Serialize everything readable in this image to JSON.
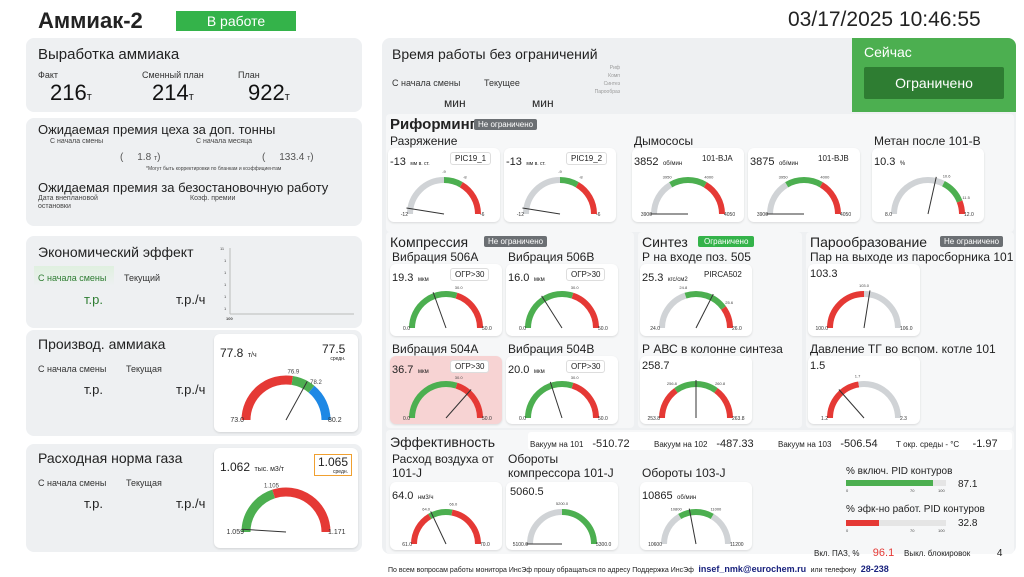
{
  "header": {
    "title": "Аммиак-2",
    "status": "В работе",
    "datetime": "03/17/2025 10:46:55"
  },
  "colors": {
    "green": "#4caf50",
    "red": "#e53935",
    "blue": "#1e88e5",
    "status_green": "#34b34a",
    "dark_green": "#2e7d32"
  },
  "production": {
    "title": "Выработка аммиака",
    "fact_label": "Факт",
    "fact_value": "216",
    "fact_unit": "т",
    "shift_label": "Сменный план",
    "shift_value": "214",
    "shift_unit": "т",
    "plan_label": "План",
    "plan_value": "922",
    "plan_unit": "т"
  },
  "bonus": {
    "title": "Ожидаемая премия цеха за доп. тонны",
    "shift_label": "С начала смены",
    "shift_value": "1.8",
    "month_label": "С начала месяца",
    "month_value": "133.4",
    "paren_open": "(",
    "paren_close": ")",
    "t_unit": "т",
    "note": "*Могут быть корректировки по бланкам и коэффициентам",
    "title2": "Ожидаемая премия за безостановочную работу",
    "date_label": "Дата внеплановой остановки",
    "coef_label": "Коэф. премии"
  },
  "econ": {
    "title": "Экономический эффект",
    "shift_label": "С начала смены",
    "current_label": "Текущий",
    "shift_unit": "т.р.",
    "current_unit": "т.р./ч",
    "chart_y": [
      "11",
      "1",
      "1",
      "1",
      "1",
      "1"
    ],
    "chart_x": "100"
  },
  "ammonia_prod": {
    "title": "Производ. аммиака",
    "shift_label": "С начала смены",
    "current_label": "Текущая",
    "shift_unit": "т.р.",
    "current_unit": "т.р./ч",
    "value": "77.8",
    "unit": "т/ч",
    "avg_value": "77.5",
    "avg_label": "средн.",
    "gauge": {
      "min": "73.0",
      "max": "80.2",
      "mark1": "76.9",
      "mark2": "78.2"
    }
  },
  "gas_norm": {
    "title": "Расходная норма газа",
    "shift_label": "С начала смены",
    "current_label": "Текущая",
    "shift_unit": "т.р.",
    "current_unit": "т.р./ч",
    "value": "1.062",
    "unit": "тыс. м3/т",
    "avg_value": "1.065",
    "avg_label": "средн.",
    "gauge": {
      "min": "1.059",
      "max": "1.171",
      "mark": "1.105"
    }
  },
  "worktime": {
    "title": "Время работы без ограничений",
    "shift_label": "С начала смены",
    "current_label": "Текущее",
    "shift_unit": "мин",
    "current_unit": "мин",
    "side_labels": [
      "Риф",
      "Комп",
      "Синтез",
      "Парообраз"
    ]
  },
  "now": {
    "title": "Сейчас",
    "status": "Ограничено"
  },
  "reforming": {
    "title": "Риформинг",
    "badge": "Не ограничено",
    "vac_title": "Разряжение",
    "g1": {
      "value": "-13",
      "unit": "мм в. ст.",
      "tag": "PIC19_1",
      "min": "-12",
      "max": "-6",
      "m1": "-9",
      "m2": "-8"
    },
    "g2": {
      "value": "-13",
      "unit": "мм в. ст.",
      "tag": "PIC19_2",
      "min": "-12",
      "max": "-6",
      "m1": "-9",
      "m2": "-8"
    },
    "fans_title": "Дымососы",
    "g3": {
      "value": "3852",
      "unit": "об/мин",
      "tag": "101-BJA",
      "min": "3900",
      "max": "4050",
      "m1": "3950",
      "m2": "4000"
    },
    "g4": {
      "value": "3875",
      "unit": "об/мин",
      "tag": "101-BJB",
      "min": "3900",
      "max": "4050",
      "m1": "3950",
      "m2": "4000"
    },
    "methane_title": "Метан после 101-В",
    "g5": {
      "value": "10.3",
      "unit": "%",
      "min": "8.0",
      "max": "12.0",
      "m1": "10.6",
      "m2": "11.5"
    }
  },
  "compression": {
    "title": "Компрессия",
    "badge": "Не ограничено",
    "v506a": {
      "title": "Вибрация 506A",
      "value": "19.3",
      "unit": "мкм",
      "tag": "ОГР>30",
      "min": "0.0",
      "max": "50.0",
      "mark": "30.0"
    },
    "v506b": {
      "title": "Вибрация 506B",
      "value": "16.0",
      "unit": "мкм",
      "tag": "ОГР>30",
      "min": "0.0",
      "max": "50.0",
      "mark": "30.0"
    },
    "v504a": {
      "title": "Вибрация 504A",
      "value": "36.7",
      "unit": "мкм",
      "tag": "ОГР>30",
      "min": "0.0",
      "max": "50.0",
      "mark": "30.0"
    },
    "v504b": {
      "title": "Вибрация 504B",
      "value": "20.0",
      "unit": "мкм",
      "tag": "ОГР>30",
      "min": "0.0",
      "max": "50.0",
      "mark": "30.0"
    }
  },
  "synthesis": {
    "title": "Синтез",
    "badge": "Ограничено",
    "p505": {
      "title": "Р на входе поз. 505",
      "value": "25.3",
      "unit": "кгс/см2",
      "tag": "PIRCA502",
      "min": "24.0",
      "max": "26.0",
      "m1": "24.8",
      "m2": "25.6"
    },
    "pabc": {
      "title": "Р АВС в колонне синтеза",
      "value": "258.7",
      "min": "253.8",
      "max": "263.8",
      "m1": "256.8",
      "m2": "260.8"
    }
  },
  "steam": {
    "title": "Парообразование",
    "badge": "Не ограничено",
    "p101": {
      "title": "Пар на выходе из паросборника 101",
      "value": "103.3",
      "min": "100.0",
      "max": "106.0",
      "mark": "103.0"
    },
    "ptg": {
      "title": "Давление ТГ во вспом. котле 101",
      "value": "1.5",
      "min": "1.2",
      "max": "2.3",
      "mark": "1.7"
    }
  },
  "efficiency": {
    "title": "Эффективность",
    "vac101_label": "Вакуум на 101",
    "vac101": "-510.72",
    "vac102_label": "Вакуум на 102",
    "vac102": "-487.33",
    "vac103_label": "Вакуум на 103",
    "vac103": "-506.54",
    "tenv_label": "Т окр. среды - °С",
    "tenv": "-1.97",
    "air": {
      "title": "Расход воздуха от 101-J",
      "value": "64.0",
      "unit": "нм3/ч",
      "min": "61.0",
      "max": "70.0",
      "m1": "64.0",
      "m2": "66.0"
    },
    "comp": {
      "title": "Обороты компрессора 101-J",
      "value": "5060.5",
      "min": "5100.0",
      "max": "5300.0",
      "mark": "5200.0"
    },
    "c103": {
      "title": "Обороты 103-J",
      "value": "10865",
      "unit": "об/мин",
      "min": "10600",
      "max": "11200",
      "m1": "10800",
      "m2": "11000"
    },
    "pid_on": {
      "title": "% включ. PID контуров",
      "value": "87.1",
      "fill": 0.87,
      "s0": "0",
      "s70": "70",
      "s100": "100"
    },
    "pid_eff": {
      "title": "% эфк-но работ. PID контуров",
      "value": "32.8",
      "fill": 0.33,
      "s0": "0",
      "s70": "70",
      "s100": "100"
    },
    "paz_label": "Вкл. ПАЗ, %",
    "paz_value": "96.1",
    "block_label": "Выкл. блокировок",
    "block_value": "4"
  },
  "footer": {
    "text": "По всем вопросам работы монитора ИнсЭф прошу обращаться по адресу Поддержка ИнсЭф",
    "email": "insef_nmk@eurochem.ru",
    "phone_label": "или телефону",
    "phone": "28-238"
  }
}
